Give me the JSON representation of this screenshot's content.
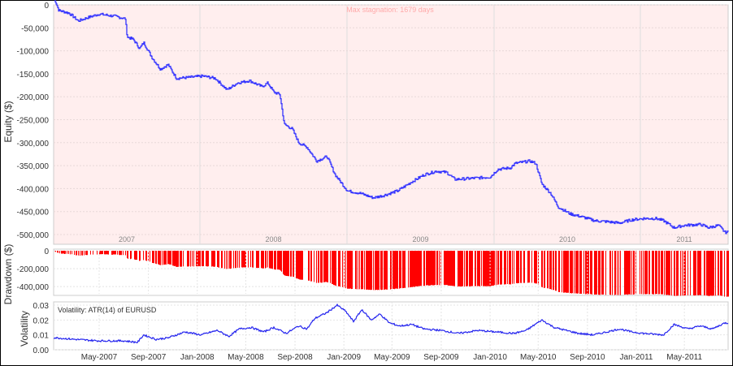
{
  "colors": {
    "equity_line": "#3333ff",
    "equity_bg": "#ffeeee",
    "drawdown_bar": "#ff0000",
    "volatility_line": "#2222ee",
    "stagnation_label": "#ffaaaa"
  },
  "chart_data": [
    {
      "type": "line",
      "ylabel": "Equity ($)",
      "annotation": "Max stagnation: 1679 days",
      "ylim": [
        -500000,
        0
      ],
      "yticks": [
        "0",
        "-50,000",
        "-100,000",
        "-150,000",
        "-200,000",
        "-250,000",
        "-300,000",
        "-350,000",
        "-400,000",
        "-450,000",
        "-500,000"
      ],
      "year_labels": [
        "2007",
        "2008",
        "2009",
        "2010",
        "2011"
      ],
      "grid": true,
      "series": [
        {
          "points": [
            [
              "2007-01-15",
              0
            ],
            [
              "2007-01-20",
              -12000
            ],
            [
              "2007-02-15",
              -18000
            ],
            [
              "2007-03-10",
              -35000
            ],
            [
              "2007-04-01",
              -28000
            ],
            [
              "2007-05-01",
              -20000
            ],
            [
              "2007-06-10",
              -25000
            ],
            [
              "2007-07-05",
              -30000
            ],
            [
              "2007-07-10",
              -70000
            ],
            [
              "2007-07-25",
              -75000
            ],
            [
              "2007-08-10",
              -95000
            ],
            [
              "2007-08-20",
              -82000
            ],
            [
              "2007-09-10",
              -115000
            ],
            [
              "2007-10-01",
              -140000
            ],
            [
              "2007-10-20",
              -130000
            ],
            [
              "2007-11-10",
              -160000
            ],
            [
              "2007-12-10",
              -158000
            ],
            [
              "2008-01-15",
              -155000
            ],
            [
              "2008-02-15",
              -160000
            ],
            [
              "2008-03-15",
              -185000
            ],
            [
              "2008-04-10",
              -170000
            ],
            [
              "2008-05-10",
              -165000
            ],
            [
              "2008-06-10",
              -178000
            ],
            [
              "2008-06-25",
              -170000
            ],
            [
              "2008-07-10",
              -190000
            ],
            [
              "2008-07-25",
              -195000
            ],
            [
              "2008-08-05",
              -260000
            ],
            [
              "2008-08-25",
              -270000
            ],
            [
              "2008-09-10",
              -300000
            ],
            [
              "2008-10-01",
              -310000
            ],
            [
              "2008-10-25",
              -340000
            ],
            [
              "2008-11-20",
              -330000
            ],
            [
              "2008-12-10",
              -370000
            ],
            [
              "2009-01-10",
              -405000
            ],
            [
              "2009-02-10",
              -410000
            ],
            [
              "2009-03-15",
              -420000
            ],
            [
              "2009-04-10",
              -415000
            ],
            [
              "2009-05-15",
              -405000
            ],
            [
              "2009-06-20",
              -385000
            ],
            [
              "2009-07-20",
              -370000
            ],
            [
              "2009-08-20",
              -362000
            ],
            [
              "2009-09-15",
              -365000
            ],
            [
              "2009-10-05",
              -380000
            ],
            [
              "2009-11-10",
              -378000
            ],
            [
              "2010-01-01",
              -375000
            ],
            [
              "2010-01-20",
              -358000
            ],
            [
              "2010-02-20",
              -355000
            ],
            [
              "2010-03-05",
              -345000
            ],
            [
              "2010-04-10",
              -340000
            ],
            [
              "2010-04-25",
              -345000
            ],
            [
              "2010-05-10",
              -390000
            ],
            [
              "2010-06-01",
              -410000
            ],
            [
              "2010-06-20",
              -440000
            ],
            [
              "2010-07-20",
              -455000
            ],
            [
              "2010-08-20",
              -462000
            ],
            [
              "2010-09-20",
              -470000
            ],
            [
              "2010-10-20",
              -472000
            ],
            [
              "2010-11-20",
              -475000
            ],
            [
              "2010-12-20",
              -468000
            ],
            [
              "2011-01-20",
              -465000
            ],
            [
              "2011-02-20",
              -465000
            ],
            [
              "2011-03-10",
              -470000
            ],
            [
              "2011-04-05",
              -485000
            ],
            [
              "2011-05-01",
              -480000
            ],
            [
              "2011-06-10",
              -478000
            ],
            [
              "2011-07-01",
              -485000
            ],
            [
              "2011-07-25",
              -480000
            ],
            [
              "2011-08-10",
              -495000
            ]
          ]
        }
      ]
    },
    {
      "type": "bar",
      "ylabel": "Drawdown ($)",
      "ylim": [
        -480000,
        0
      ],
      "yticks": [
        "0",
        "-200,000",
        "-400,000"
      ],
      "source": "derived from equity"
    },
    {
      "type": "line",
      "ylabel": "Volatility",
      "legend": "Volatility: ATR(14) of EURUSD",
      "ylim": [
        0,
        0.03
      ],
      "yticks": [
        "0.03",
        "0.02",
        "0.01",
        "0.00"
      ],
      "xticks": [
        "May-2007",
        "Sep-2007",
        "Jan-2008",
        "May-2008",
        "Sep-2008",
        "Jan-2009",
        "May-2009",
        "Sep-2009",
        "Jan-2010",
        "May-2010",
        "Sep-2010",
        "Jan-2011",
        "May-2011"
      ],
      "series": [
        {
          "points": [
            [
              "2007-01-15",
              0.008
            ],
            [
              "2007-03-01",
              0.007
            ],
            [
              "2007-05-01",
              0.006
            ],
            [
              "2007-07-01",
              0.006
            ],
            [
              "2007-08-05",
              0.005
            ],
            [
              "2007-08-20",
              0.01
            ],
            [
              "2007-09-20",
              0.007
            ],
            [
              "2007-10-20",
              0.008
            ],
            [
              "2007-12-01",
              0.012
            ],
            [
              "2008-01-10",
              0.01
            ],
            [
              "2008-02-20",
              0.013
            ],
            [
              "2008-03-20",
              0.009
            ],
            [
              "2008-04-15",
              0.014
            ],
            [
              "2008-05-15",
              0.015
            ],
            [
              "2008-06-15",
              0.012
            ],
            [
              "2008-07-10",
              0.015
            ],
            [
              "2008-08-10",
              0.011
            ],
            [
              "2008-09-10",
              0.016
            ],
            [
              "2008-10-01",
              0.014
            ],
            [
              "2008-10-20",
              0.021
            ],
            [
              "2008-11-20",
              0.025
            ],
            [
              "2008-12-15",
              0.03
            ],
            [
              "2009-01-05",
              0.026
            ],
            [
              "2009-01-25",
              0.019
            ],
            [
              "2009-02-15",
              0.027
            ],
            [
              "2009-03-10",
              0.02
            ],
            [
              "2009-04-01",
              0.024
            ],
            [
              "2009-04-25",
              0.018
            ],
            [
              "2009-05-20",
              0.016
            ],
            [
              "2009-06-20",
              0.017
            ],
            [
              "2009-07-20",
              0.014
            ],
            [
              "2009-09-01",
              0.013
            ],
            [
              "2009-10-15",
              0.011
            ],
            [
              "2009-12-01",
              0.013
            ],
            [
              "2010-01-15",
              0.012
            ],
            [
              "2010-03-01",
              0.011
            ],
            [
              "2010-04-01",
              0.013
            ],
            [
              "2010-05-10",
              0.02
            ],
            [
              "2010-06-10",
              0.015
            ],
            [
              "2010-07-10",
              0.013
            ],
            [
              "2010-08-10",
              0.011
            ],
            [
              "2010-09-15",
              0.01
            ],
            [
              "2010-10-20",
              0.012
            ],
            [
              "2010-11-20",
              0.014
            ],
            [
              "2010-12-20",
              0.012
            ],
            [
              "2011-01-20",
              0.011
            ],
            [
              "2011-03-10",
              0.01
            ],
            [
              "2011-04-05",
              0.017
            ],
            [
              "2011-05-10",
              0.014
            ],
            [
              "2011-06-10",
              0.016
            ],
            [
              "2011-07-10",
              0.014
            ],
            [
              "2011-08-10",
              0.018
            ]
          ]
        }
      ]
    }
  ]
}
